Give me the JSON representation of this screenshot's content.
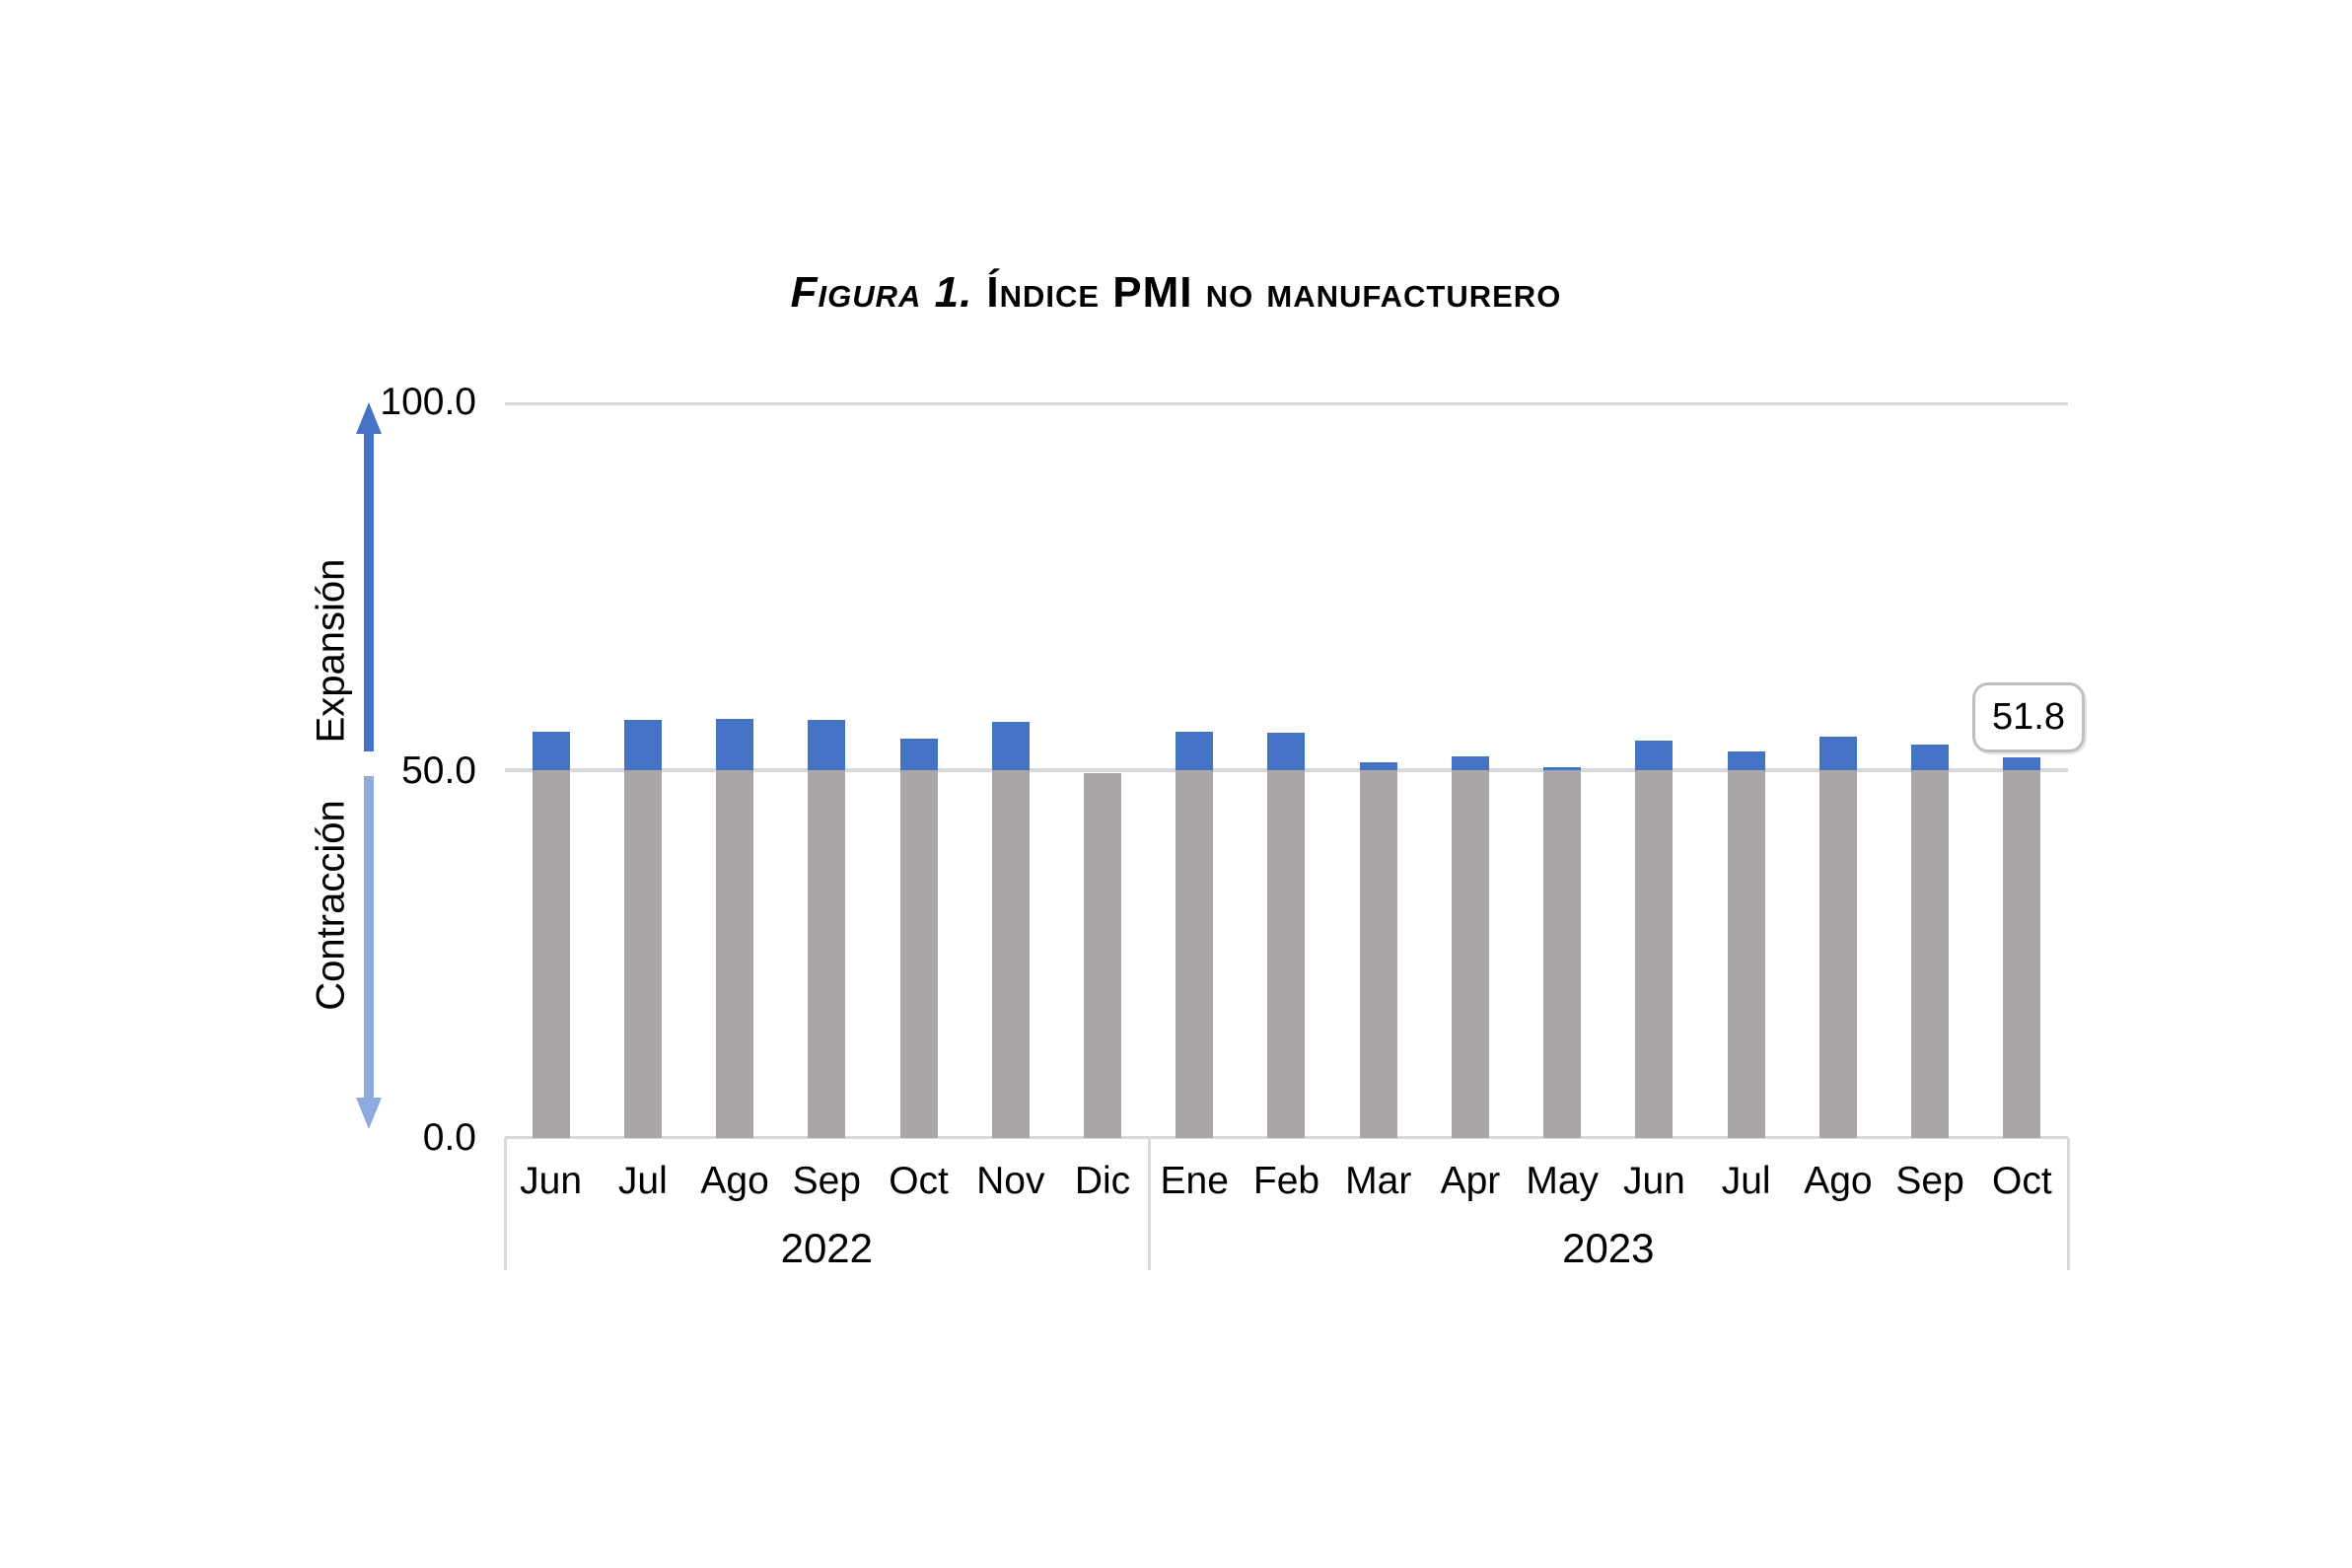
{
  "title": {
    "prefix": "Figura 1.",
    "main": "Índice PMI no manufacturero"
  },
  "y_axis": {
    "ticks": [
      "100.0",
      "50.0",
      "0.0"
    ]
  },
  "side_labels": {
    "expansion": "Expansión",
    "contraction": "Contracción"
  },
  "callout": {
    "value_label": "51.8"
  },
  "colors": {
    "bar_above_threshold": "#4472C4",
    "bar_base": "#A9A6A5",
    "gridline": "#D9D9D9",
    "arrow_up": "#4472C4",
    "arrow_down": "#8FAADC",
    "callout_border": "#BFBFBF"
  },
  "chart_data": {
    "type": "bar",
    "title": "Figura 1. Índice PMI no manufacturero",
    "categories": [
      "Jun",
      "Jul",
      "Ago",
      "Sep",
      "Oct",
      "Nov",
      "Dic",
      "Ene",
      "Feb",
      "Mar",
      "Apr",
      "May",
      "Jun",
      "Jul",
      "Ago",
      "Sep",
      "Oct"
    ],
    "groups": [
      {
        "label": "2022",
        "count": 7
      },
      {
        "label": "2023",
        "count": 10
      }
    ],
    "values": [
      55.2,
      56.8,
      57.0,
      56.8,
      54.3,
      56.6,
      49.6,
      55.2,
      55.1,
      51.1,
      51.9,
      50.4,
      54.0,
      52.6,
      54.5,
      53.5,
      51.8
    ],
    "threshold": 50,
    "ylim": [
      0,
      100
    ],
    "yticks": [
      0,
      50,
      100
    ],
    "last_value_annotation": 51.8,
    "legend": "none",
    "grid": "horizontal",
    "bar_split_note": "gray segment = 0 to min(value,50); blue segment = portion above 50"
  }
}
